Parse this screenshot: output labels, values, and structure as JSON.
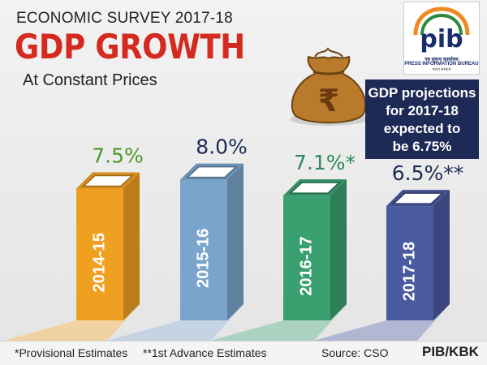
{
  "header": {
    "survey": "ECONOMIC SURVEY 2017-18",
    "title": "GDP GROWTH",
    "subtitle": "At Constant Prices"
  },
  "logo": {
    "brand": "pib",
    "hindi": "पत्र सूचना कार्यालय",
    "english": "PRESS INFORMATION BUREAU",
    "sub": "भारत सरकार"
  },
  "projection": {
    "line1": "GDP projections",
    "line2": "for 2017-18",
    "line3": "expected to",
    "line4": "be 6.75%"
  },
  "footer": {
    "provisional": "*Provisional Estimates",
    "advance": "**1st Advance Estimates",
    "source": "Source: CSO",
    "credit": "PIB/KBK"
  },
  "colors": {
    "title_red": "#d42a20",
    "box_navy": "#1e2a56",
    "bar_2014": "#f0a020",
    "bar_2015": "#7aa4cc",
    "bar_2016": "#3aa070",
    "bar_2017": "#4a5aa0"
  },
  "icons": [
    "rupee-money-bag-icon"
  ],
  "chart_data": {
    "type": "bar",
    "title": "GDP GROWTH",
    "subtitle": "At Constant Prices",
    "categories": [
      "2014-15",
      "2015-16",
      "2016-17",
      "2017-18"
    ],
    "values": [
      7.5,
      8.0,
      7.1,
      6.5
    ],
    "data_labels": [
      "7.5%",
      "8.0%",
      "7.1%*",
      "6.5%**"
    ],
    "unit": "%",
    "colors": [
      "#f0a020",
      "#7aa4cc",
      "#3aa070",
      "#4a5aa0"
    ],
    "label_colors": [
      "#4a9a2a",
      "#1e2a56",
      "#2e8a5a",
      "#1e2a56"
    ],
    "ylim": [
      0,
      8
    ],
    "grid": false,
    "xlabel": "",
    "ylabel": ""
  }
}
